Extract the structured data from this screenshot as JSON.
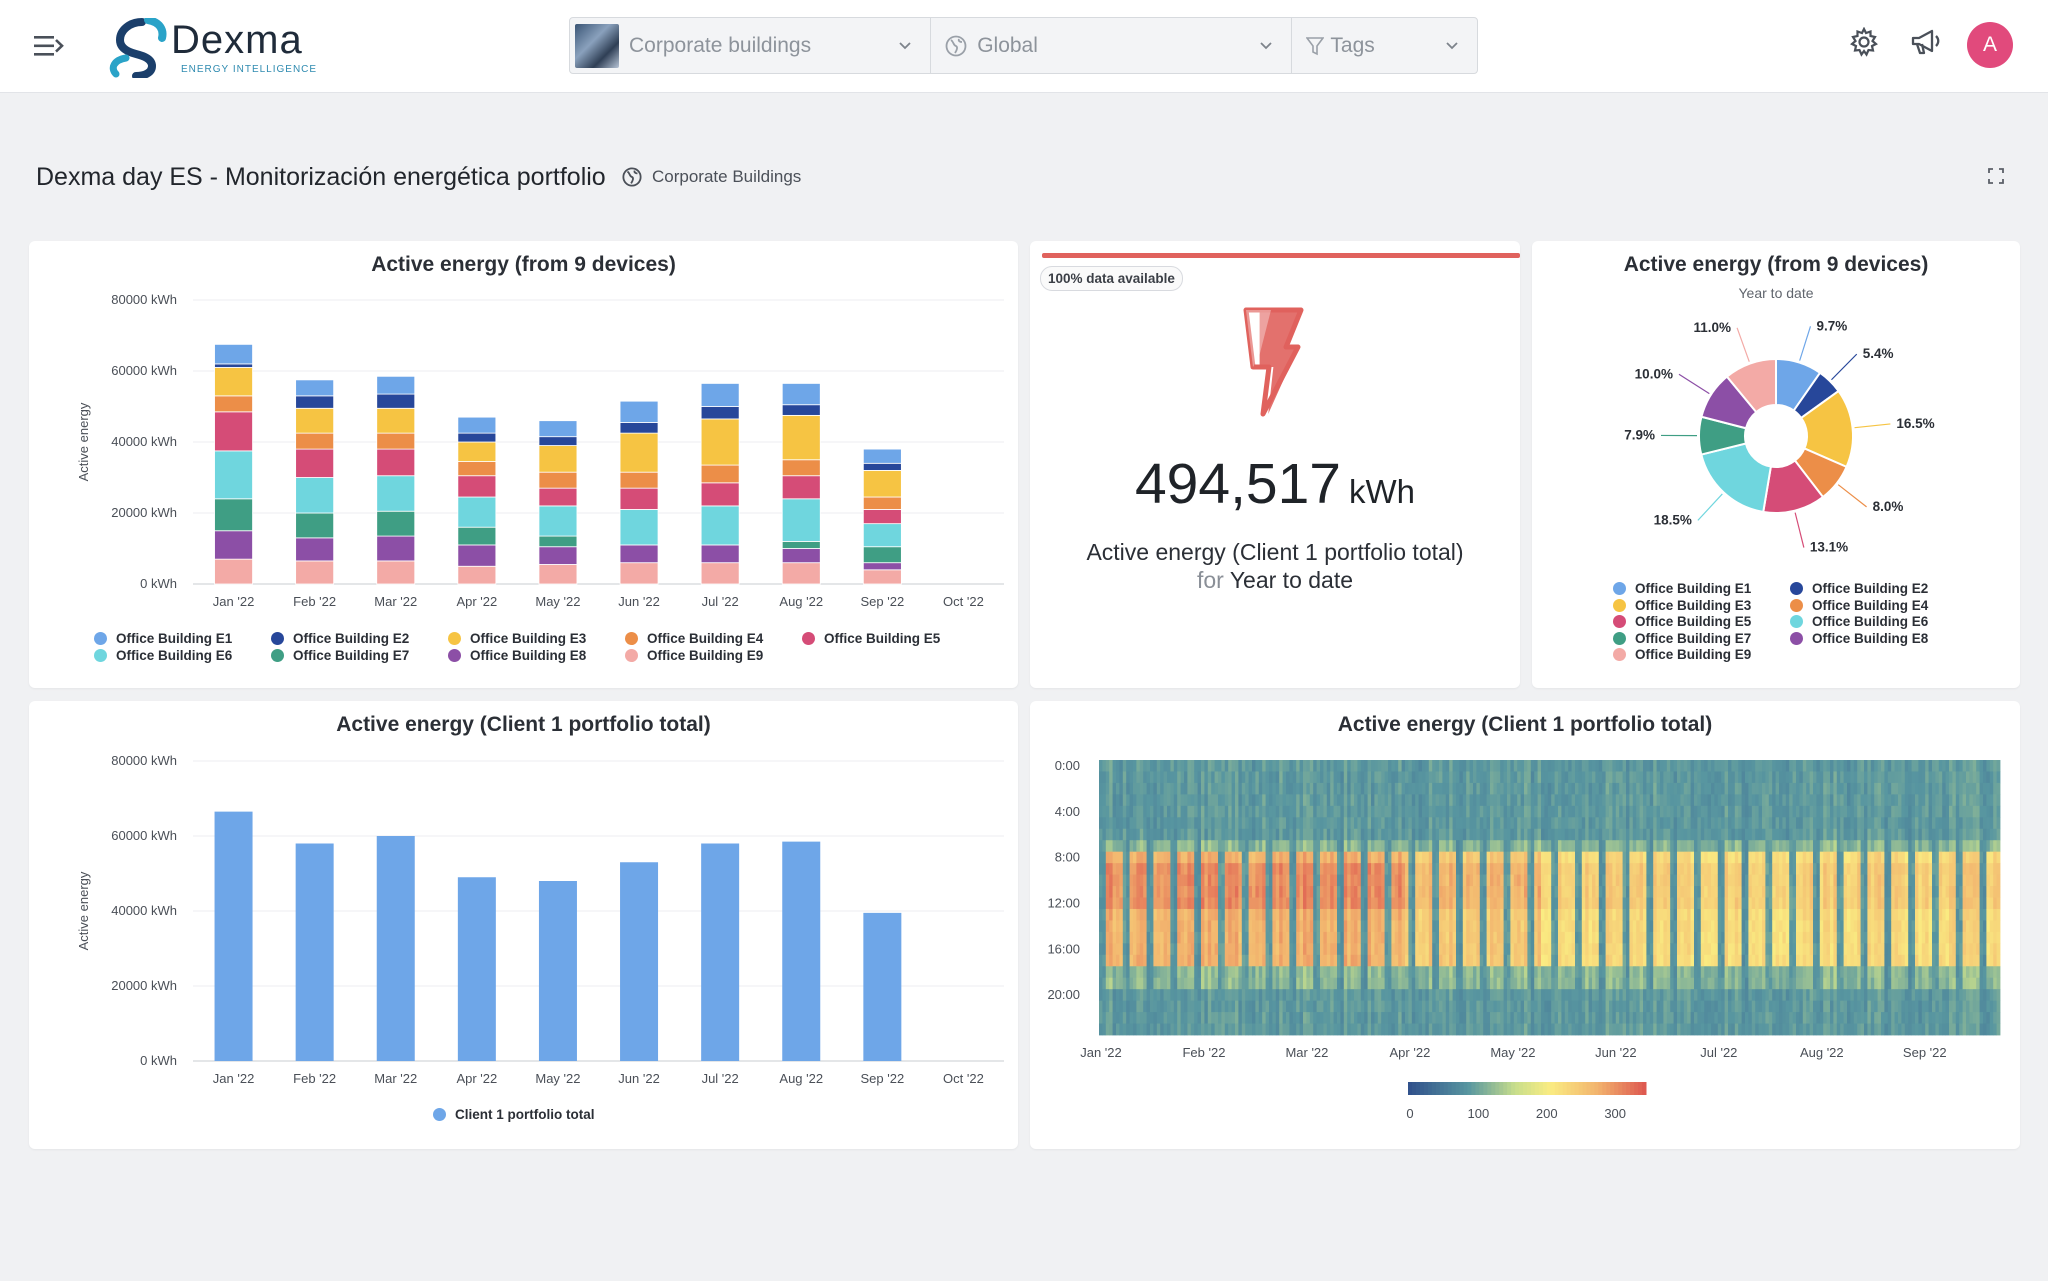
{
  "header": {
    "logo_name": "Dexma",
    "logo_tagline": "ENERGY INTELLIGENCE",
    "filters": [
      {
        "label": "Corporate buildings"
      },
      {
        "label": "Global"
      },
      {
        "label": "Tags"
      }
    ],
    "avatar_initial": "A"
  },
  "page": {
    "title": "Dexma day ES - Monitorización energética portfolio",
    "scope": "Corporate Buildings"
  },
  "colors": {
    "E1": "#6ea6e8",
    "E2": "#27479a",
    "E3": "#f6c443",
    "E4": "#ec8e48",
    "E5": "#d54c77",
    "E6": "#6fd6de",
    "E7": "#3f9e84",
    "E8": "#8c4fa6",
    "E9": "#f3aaa6",
    "total": "#6ea6e8",
    "kpi_red": "#e0625d"
  },
  "stacked_chart": {
    "title": "Active energy (from 9 devices)",
    "ylabel": "Active energy",
    "y_ticks": [
      "80000 kWh",
      "60000 kWh",
      "40000 kWh",
      "20000 kWh",
      "0 kWh"
    ],
    "categories": [
      "Jan '22",
      "Feb '22",
      "Mar '22",
      "Apr '22",
      "May '22",
      "Jun '22",
      "Jul '22",
      "Aug '22",
      "Sep '22",
      "Oct '22"
    ],
    "legend": [
      "Office Building E1",
      "Office Building E2",
      "Office Building E3",
      "Office Building E4",
      "Office Building E5",
      "Office Building E6",
      "Office Building E7",
      "Office Building E8",
      "Office Building E9"
    ]
  },
  "kpi": {
    "badge": "100% data available",
    "value": "494,517",
    "unit": "kWh",
    "label": "Active energy (Client 1 portfolio total)",
    "for_word": "for",
    "period": "Year to date"
  },
  "donut": {
    "title": "Active energy (from 9 devices)",
    "subtitle": "Year to date",
    "legend": [
      "Office Building E1",
      "Office Building E2",
      "Office Building E3",
      "Office Building E4",
      "Office Building E5",
      "Office Building E6",
      "Office Building E7",
      "Office Building E8",
      "Office Building E9"
    ]
  },
  "total_chart": {
    "title": "Active energy (Client 1 portfolio total)",
    "ylabel": "Active energy",
    "y_ticks": [
      "80000 kWh",
      "60000 kWh",
      "40000 kWh",
      "20000 kWh",
      "0 kWh"
    ],
    "categories": [
      "Jan '22",
      "Feb '22",
      "Mar '22",
      "Apr '22",
      "May '22",
      "Jun '22",
      "Jul '22",
      "Aug '22",
      "Sep '22",
      "Oct '22"
    ],
    "legend": "Client 1 portfolio total"
  },
  "heatmap": {
    "title": "Active energy (Client 1 portfolio total)",
    "y_ticks": [
      "0:00",
      "4:00",
      "8:00",
      "12:00",
      "16:00",
      "20:00"
    ],
    "x_ticks": [
      "Jan '22",
      "Feb '22",
      "Mar '22",
      "Apr '22",
      "May '22",
      "Jun '22",
      "Jul '22",
      "Aug '22",
      "Sep '22"
    ],
    "scale_ticks": [
      "0",
      "100",
      "200",
      "300"
    ]
  },
  "chart_data": [
    {
      "type": "bar",
      "stacked": true,
      "title": "Active energy (from 9 devices)",
      "ylabel": "Active energy",
      "ylim": [
        0,
        80000
      ],
      "categories": [
        "Jan '22",
        "Feb '22",
        "Mar '22",
        "Apr '22",
        "May '22",
        "Jun '22",
        "Jul '22",
        "Aug '22",
        "Sep '22",
        "Oct '22"
      ],
      "series": [
        {
          "name": "Office Building E9",
          "values": [
            7000,
            6500,
            6500,
            5000,
            5500,
            6000,
            6000,
            6000,
            4000,
            0
          ]
        },
        {
          "name": "Office Building E8",
          "values": [
            8000,
            6500,
            7000,
            6000,
            5000,
            5000,
            5000,
            4000,
            2000,
            0
          ]
        },
        {
          "name": "Office Building E7",
          "values": [
            9000,
            7000,
            7000,
            5000,
            3000,
            0,
            0,
            2000,
            4500,
            0
          ]
        },
        {
          "name": "Office Building E6",
          "values": [
            13500,
            10000,
            10000,
            8500,
            8500,
            10000,
            11000,
            12000,
            6500,
            0
          ]
        },
        {
          "name": "Office Building E5",
          "values": [
            11000,
            8000,
            7500,
            6000,
            5000,
            6000,
            6500,
            6500,
            4000,
            0
          ]
        },
        {
          "name": "Office Building E4",
          "values": [
            4500,
            4500,
            4500,
            4000,
            4500,
            4500,
            5000,
            4500,
            3500,
            0
          ]
        },
        {
          "name": "Office Building E3",
          "values": [
            8000,
            7000,
            7000,
            5500,
            7500,
            11000,
            13000,
            12500,
            7500,
            0
          ]
        },
        {
          "name": "Office Building E2",
          "values": [
            1000,
            3500,
            4000,
            2500,
            2500,
            3000,
            3500,
            3000,
            2000,
            0
          ]
        },
        {
          "name": "Office Building E1",
          "values": [
            5500,
            4500,
            5000,
            4500,
            4500,
            6000,
            6500,
            6000,
            4000,
            0
          ]
        }
      ]
    },
    {
      "type": "pie",
      "donut": true,
      "title": "Active energy (from 9 devices)",
      "subtitle": "Year to date",
      "labels": [
        "Office Building E1",
        "Office Building E2",
        "Office Building E3",
        "Office Building E4",
        "Office Building E5",
        "Office Building E6",
        "Office Building E7",
        "Office Building E8",
        "Office Building E9"
      ],
      "values": [
        9.7,
        5.4,
        16.5,
        8.0,
        13.1,
        18.5,
        7.9,
        10.0,
        11.0
      ],
      "value_labels": [
        "9.7%",
        "5.4%",
        "16.5%",
        "8.0%",
        "13.1%",
        "18.5%",
        "7.9%",
        "10.0%",
        "11.0%"
      ]
    },
    {
      "type": "bar",
      "title": "Active energy (Client 1 portfolio total)",
      "ylabel": "Active energy",
      "ylim": [
        0,
        80000
      ],
      "categories": [
        "Jan '22",
        "Feb '22",
        "Mar '22",
        "Apr '22",
        "May '22",
        "Jun '22",
        "Jul '22",
        "Aug '22",
        "Sep '22",
        "Oct '22"
      ],
      "series": [
        {
          "name": "Client 1 portfolio total",
          "values": [
            66500,
            58000,
            60000,
            49000,
            48000,
            53000,
            58000,
            58500,
            39500,
            0
          ]
        }
      ]
    },
    {
      "type": "heatmap",
      "title": "Active energy (Client 1 portfolio total)",
      "x_range": [
        "Jan '22",
        "Sep '22"
      ],
      "y_range": [
        "0:00",
        "24:00"
      ],
      "color_scale": [
        0,
        300
      ],
      "peak_hours": [
        8,
        18
      ],
      "peak_months": [
        "Jan '22",
        "Feb '22",
        "Mar '22"
      ]
    }
  ]
}
